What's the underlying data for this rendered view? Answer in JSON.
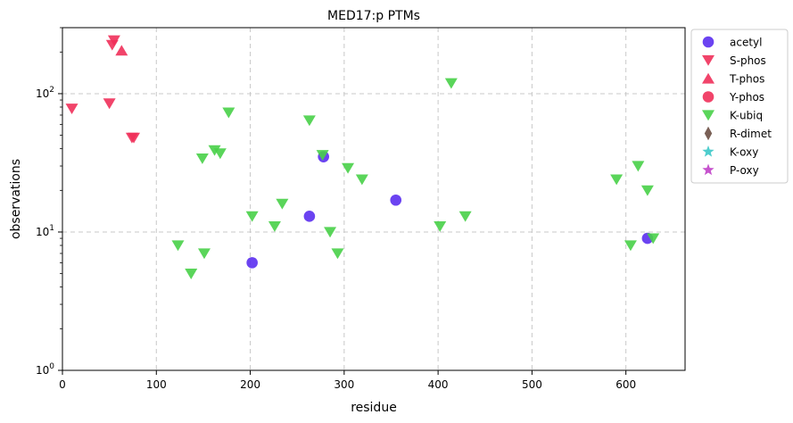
{
  "chart_data": {
    "type": "scatter",
    "title": "MED17:p PTMs",
    "xlabel": "residue",
    "ylabel": "observations",
    "xlim": [
      0,
      663
    ],
    "ylim": [
      1,
      300
    ],
    "yscale": "log",
    "x_ticks": [
      0,
      100,
      200,
      300,
      400,
      500,
      600
    ],
    "x_tick_labels": [
      "0",
      "100",
      "200",
      "300",
      "400",
      "500",
      "600"
    ],
    "y_ticks": [
      1,
      10,
      100
    ],
    "y_tick_labels": [
      "10^0",
      "10^1",
      "10^2"
    ],
    "grid": true,
    "legend_position": "outside-right",
    "series": [
      {
        "name": "acetyl",
        "marker": "circle",
        "color": "#5b2ff0",
        "points": [
          [
            202,
            6
          ],
          [
            263,
            13
          ],
          [
            278,
            35
          ],
          [
            355,
            17
          ],
          [
            623,
            9
          ]
        ]
      },
      {
        "name": "S-phos",
        "marker": "triangle-down",
        "color": "#f0305a",
        "points": [
          [
            10,
            78
          ],
          [
            50,
            85
          ],
          [
            53,
            225
          ],
          [
            55,
            243
          ],
          [
            74,
            48
          ],
          [
            76,
            48
          ]
        ]
      },
      {
        "name": "T-phos",
        "marker": "triangle-up",
        "color": "#f0305a",
        "points": [
          [
            63,
            205
          ]
        ]
      },
      {
        "name": "Y-phos",
        "marker": "circle",
        "color": "#f0305a",
        "points": []
      },
      {
        "name": "K-ubiq",
        "marker": "triangle-down",
        "color": "#48d048",
        "points": [
          [
            123,
            8
          ],
          [
            137,
            5
          ],
          [
            149,
            34
          ],
          [
            151,
            7
          ],
          [
            162,
            39
          ],
          [
            168,
            37
          ],
          [
            177,
            73
          ],
          [
            202,
            13
          ],
          [
            226,
            11
          ],
          [
            234,
            16
          ],
          [
            263,
            64
          ],
          [
            277,
            36
          ],
          [
            285,
            10
          ],
          [
            293,
            7
          ],
          [
            304,
            29
          ],
          [
            319,
            24
          ],
          [
            402,
            11
          ],
          [
            414,
            119
          ],
          [
            429,
            13
          ],
          [
            590,
            24
          ],
          [
            605,
            8
          ],
          [
            613,
            30
          ],
          [
            623,
            20
          ],
          [
            629,
            9
          ]
        ]
      },
      {
        "name": "R-dimet",
        "marker": "diamond",
        "color": "#6b4f44",
        "points": []
      },
      {
        "name": "K-oxy",
        "marker": "star",
        "color": "#3cc8c8",
        "points": []
      },
      {
        "name": "P-oxy",
        "marker": "star",
        "color": "#c040c8",
        "points": []
      }
    ]
  }
}
